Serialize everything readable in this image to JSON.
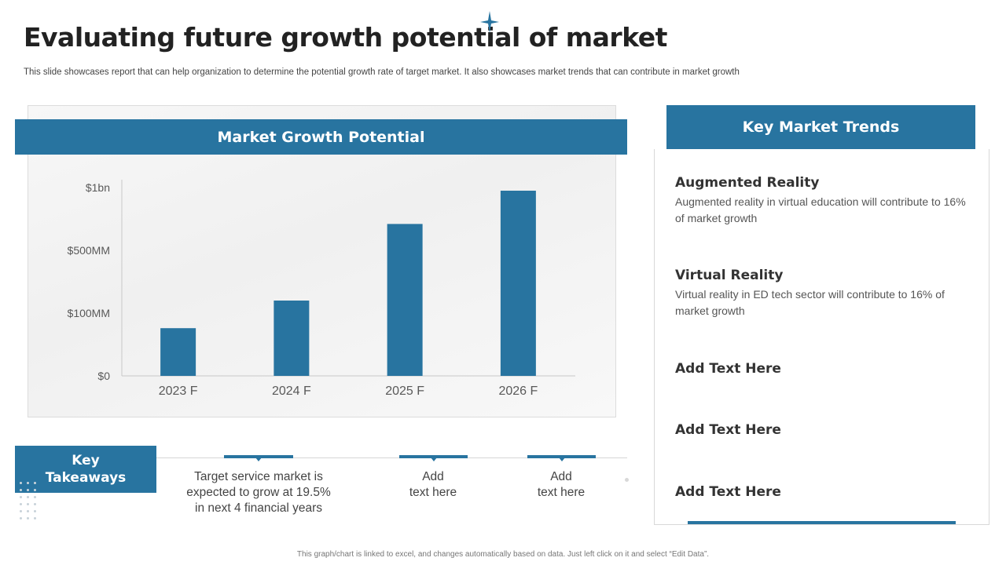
{
  "header": {
    "title": "Evaluating future growth potential of market",
    "subtitle": "This slide showcases report that can help organization to determine the potential growth rate of target market. It also showcases market trends that can contribute in market growth"
  },
  "chart_section": {
    "title": "Market Growth Potential"
  },
  "chart_data": {
    "type": "bar",
    "title": "Market Growth Potential",
    "categories": [
      "2023 F",
      "2024 F",
      "2025 F",
      "2026 F"
    ],
    "y_tick_labels": [
      "$0",
      "$100MM",
      "$500MM",
      "$1bn"
    ],
    "values": [
      0.76,
      1.2,
      2.42,
      2.95
    ],
    "value_unit": "position on categorical y-axis (0=$0, 1=$100MM, 2=$500MM, 3=$1bn)",
    "xlabel": "",
    "ylabel": "",
    "ylim": [
      0,
      3
    ],
    "color": "#2874a0",
    "grid": false
  },
  "takeaways": {
    "label": "Key\nTakeaways",
    "items": [
      "Target service market is\nexpected to grow at 19.5%\nin next 4 financial years",
      "Add\ntext here",
      "Add\ntext here"
    ]
  },
  "trends": {
    "title": "Key Market Trends",
    "items": [
      {
        "heading": "Augmented Reality",
        "description": "Augmented reality in virtual education will contribute to 16% of market growth"
      },
      {
        "heading": "Virtual Reality",
        "description": "Virtual reality in ED tech sector will contribute to 16% of market growth"
      },
      {
        "heading": "Add Text Here",
        "description": ""
      },
      {
        "heading": "Add Text Here",
        "description": ""
      },
      {
        "heading": "Add Text Here",
        "description": ""
      }
    ]
  },
  "footer": {
    "note": "This graph/chart is linked to excel, and changes automatically based on data. Just left click on it and select “Edit Data”."
  },
  "colors": {
    "accent": "#2874a0",
    "title": "#222222",
    "sparkle": "#2874a0"
  }
}
